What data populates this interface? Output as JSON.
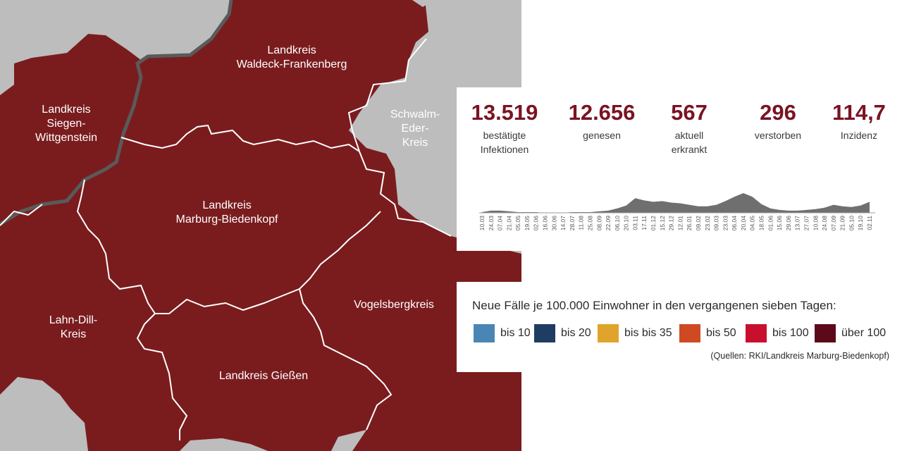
{
  "map": {
    "regions": [
      {
        "id": "waldeck",
        "label": "Landkreis\nWaldeck-Frankenberg"
      },
      {
        "id": "siegen",
        "label": "Landkreis\nSiegen-\nWittgenstein"
      },
      {
        "id": "schwalm",
        "label": "Schwalm-\nEder-\nKreis"
      },
      {
        "id": "marburg",
        "label": "Landkreis\nMarburg-Biedenkopf"
      },
      {
        "id": "lahndill",
        "label": "Lahn-Dill-\nKreis"
      },
      {
        "id": "vogelsberg",
        "label": "Vogelsbergkreis"
      },
      {
        "id": "giessen",
        "label": "Landkreis Gießen"
      }
    ],
    "region_color": "#7a1c1e",
    "outside_color": "#bdbdbd"
  },
  "stats": [
    {
      "value": "13.519",
      "label": "bestätigte\nInfektionen"
    },
    {
      "value": "12.656",
      "label": "genesen"
    },
    {
      "value": "567",
      "label": "aktuell\nerkrankt"
    },
    {
      "value": "296",
      "label": "verstorben"
    },
    {
      "value": "114,7",
      "label": "Inzidenz"
    }
  ],
  "chart_data": {
    "type": "area",
    "title": "",
    "xlabel": "",
    "ylabel": "",
    "x": [
      "10.03",
      "24.03",
      "07.04",
      "21.04",
      "05.05",
      "19.05",
      "02.06",
      "16.06",
      "30.06",
      "14.07",
      "28.07",
      "11.08",
      "25.08",
      "08.09",
      "22.09",
      "06.10",
      "20.10",
      "03.11",
      "17.11",
      "01.12",
      "15.12",
      "29.12",
      "12.01",
      "26.01",
      "09.02",
      "23.02",
      "09.03",
      "23.03",
      "06.04",
      "20.04",
      "04.05",
      "18.05",
      "01.06",
      "15.06",
      "29.06",
      "13.07",
      "27.07",
      "10.08",
      "24.08",
      "07.09",
      "21.09",
      "05.10",
      "19.10",
      "02.11"
    ],
    "values": [
      1,
      3,
      3,
      2,
      1,
      1,
      1,
      0,
      0,
      0,
      1,
      1,
      1,
      2,
      3,
      6,
      10,
      20,
      17,
      15,
      16,
      14,
      13,
      11,
      9,
      9,
      11,
      16,
      22,
      27,
      22,
      12,
      6,
      4,
      3,
      3,
      4,
      5,
      7,
      11,
      9,
      8,
      10,
      15
    ],
    "color": "#6f6f6f"
  },
  "legend": {
    "title": "Neue Fälle je 100.000 Einwohner in den vergangenen sieben Tagen:",
    "items": [
      {
        "label": "bis 10",
        "color": "#4a86b4"
      },
      {
        "label": "bis 20",
        "color": "#1f3d63"
      },
      {
        "label": "bis bis 35",
        "color": "#e0a42d"
      },
      {
        "label": "bis 50",
        "color": "#cf4a22"
      },
      {
        "label": "bis 100",
        "color": "#c8102e"
      },
      {
        "label": "über 100",
        "color": "#5c0a19"
      }
    ],
    "source": "(Quellen: RKI/Landkreis Marburg-Biedenkopf)"
  }
}
